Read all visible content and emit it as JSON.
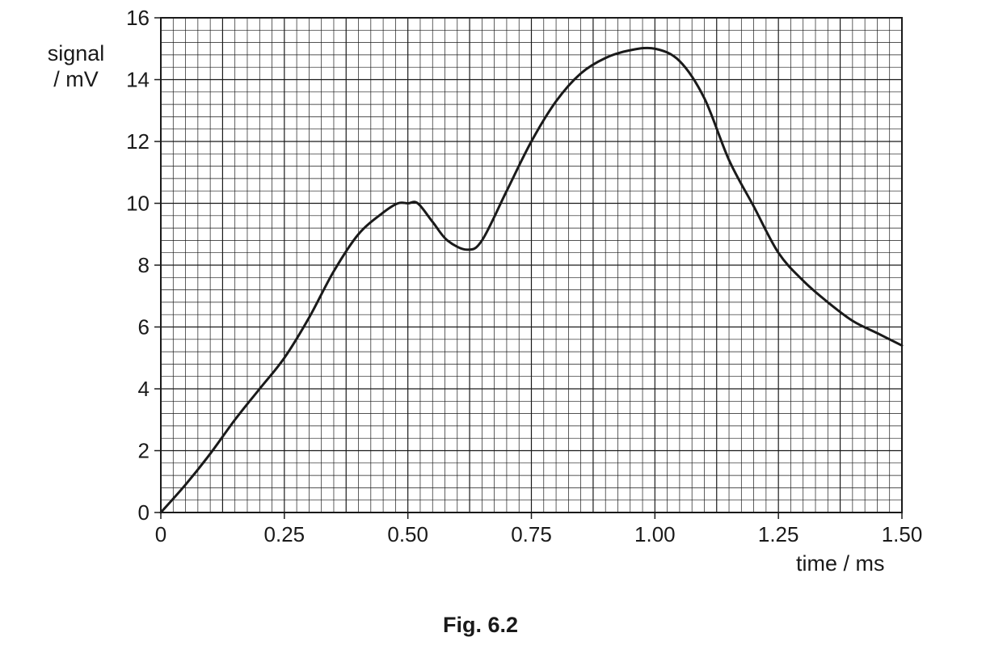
{
  "chart_data": {
    "type": "line",
    "title": "",
    "caption": "Fig. 6.2",
    "ylabel_line1": "signal",
    "ylabel_line2": "/ mV",
    "xlabel": "time / ms",
    "xlim": [
      0,
      1.5
    ],
    "ylim": [
      0,
      16
    ],
    "xticks": [
      "0",
      "0.25",
      "0.50",
      "0.75",
      "1.00",
      "1.25",
      "1.50"
    ],
    "xtick_values": [
      0,
      0.25,
      0.5,
      0.75,
      1.0,
      1.25,
      1.5
    ],
    "yticks": [
      "0",
      "2",
      "4",
      "6",
      "8",
      "10",
      "12",
      "14",
      "16"
    ],
    "ytick_values": [
      0,
      2,
      4,
      6,
      8,
      10,
      12,
      14,
      16
    ],
    "grid": {
      "major": true,
      "minor": true,
      "x_minor_step": 0.025,
      "y_minor_step": 0.4
    },
    "series": [
      {
        "x": [
          0,
          0.05,
          0.1,
          0.15,
          0.2,
          0.25,
          0.3,
          0.35,
          0.4,
          0.45,
          0.48,
          0.5,
          0.52,
          0.55,
          0.58,
          0.62,
          0.65,
          0.7,
          0.75,
          0.8,
          0.85,
          0.9,
          0.95,
          1.0,
          1.05,
          1.1,
          1.15,
          1.2,
          1.25,
          1.3,
          1.35,
          1.4,
          1.45,
          1.5
        ],
        "y": [
          0,
          0.9,
          1.9,
          3.0,
          4.0,
          5.0,
          6.3,
          7.8,
          9.0,
          9.7,
          10.0,
          10.0,
          10.0,
          9.4,
          8.8,
          8.5,
          8.8,
          10.4,
          12.0,
          13.3,
          14.2,
          14.7,
          14.95,
          15.0,
          14.6,
          13.4,
          11.4,
          9.9,
          8.4,
          7.5,
          6.8,
          6.2,
          5.8,
          5.4
        ],
        "color": "#1a1a1a"
      }
    ]
  }
}
